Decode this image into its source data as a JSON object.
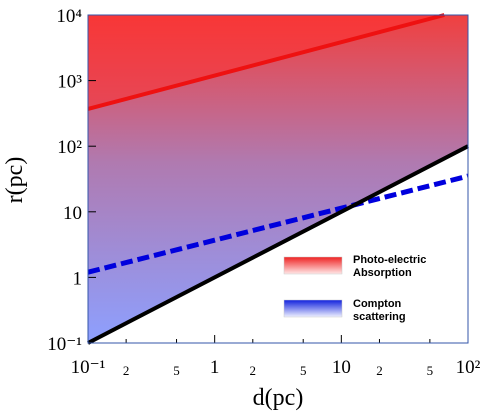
{
  "chart_data": {
    "type": "line",
    "x_label": "d(pc)",
    "y_label": "r(pc)",
    "xscale": "log",
    "yscale": "log",
    "xlim": [
      0.1,
      100
    ],
    "ylim": [
      0.1,
      10000
    ],
    "xticks": [
      {
        "value": 0.1,
        "label": "10⁻¹"
      },
      {
        "value": 0.2,
        "label": "2"
      },
      {
        "value": 0.5,
        "label": "5"
      },
      1,
      2,
      5,
      10,
      {
        "value": 20,
        "label": "2"
      },
      {
        "value": 50,
        "label": "5"
      },
      {
        "value": 100,
        "label": "10²"
      }
    ],
    "yticks": [
      {
        "value": 0.1,
        "label": "10⁻¹"
      },
      1,
      10,
      {
        "value": 100,
        "label": "10²"
      },
      {
        "value": 1000,
        "label": "10³"
      },
      {
        "value": 10000,
        "label": "10⁴"
      }
    ],
    "series": [
      {
        "name": "Photo-electric Absorption",
        "color": "#ee1111",
        "x": [
          0.1,
          65
        ],
        "values": [
          370,
          10000
        ]
      },
      {
        "name": "Compton scattering",
        "color": "#0000dd",
        "dashed": true,
        "x": [
          0.1,
          100
        ],
        "values": [
          1.2,
          35
        ]
      },
      {
        "color": "#000000",
        "x": [
          0.1,
          100
        ],
        "values": [
          0.1,
          100
        ]
      }
    ]
  }
}
